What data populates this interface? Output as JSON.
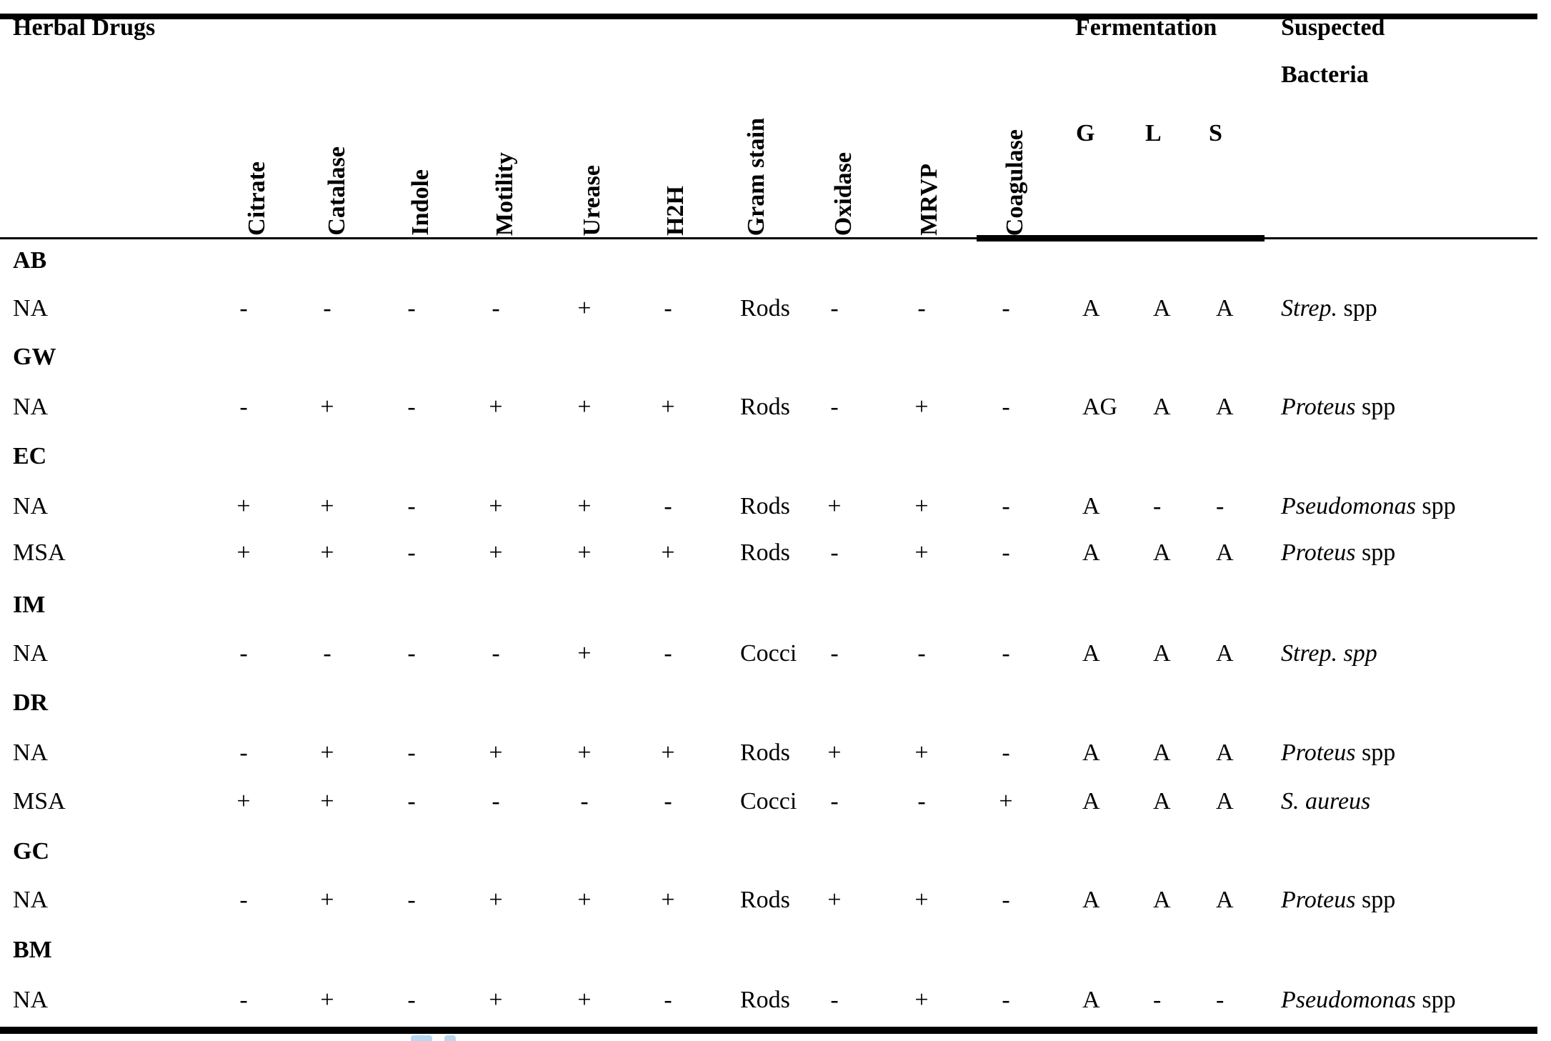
{
  "header": {
    "herbal_drugs": "Herbal Drugs",
    "fermentation": "Fermentation",
    "suspected_line1": "Suspected",
    "suspected_line2": "Bacteria",
    "rotated_columns": [
      "Citrate",
      "Catalase",
      "Indole",
      "Motility",
      "Urease",
      "H2H",
      "Gram stain",
      "Oxidase",
      "MRVP",
      "Coagulase"
    ],
    "fermentation_subcols": [
      "G",
      "L",
      "S"
    ]
  },
  "rows": [
    {
      "kind": "group",
      "label": "AB"
    },
    {
      "kind": "data",
      "label": "NA",
      "cells": [
        "-",
        "-",
        "-",
        "-",
        "+",
        "-",
        "Rods",
        "-",
        "-",
        "-",
        "A",
        "A",
        "A"
      ],
      "bacteria": [
        {
          "t": "Strep.",
          "i": true
        },
        {
          "t": " spp",
          "i": false
        }
      ]
    },
    {
      "kind": "group",
      "label": "GW"
    },
    {
      "kind": "data",
      "label": "NA",
      "cells": [
        "-",
        "+",
        "-",
        "+",
        "+",
        "+",
        "Rods",
        "-",
        "+",
        "-",
        "AG",
        "A",
        "A"
      ],
      "bacteria": [
        {
          "t": "Proteus",
          "i": true
        },
        {
          "t": " spp",
          "i": false
        }
      ]
    },
    {
      "kind": "group",
      "label": "EC"
    },
    {
      "kind": "data",
      "label": "NA",
      "cells": [
        "+",
        "+",
        "-",
        "+",
        "+",
        "-",
        "Rods",
        "+",
        "+",
        "-",
        "A",
        "-",
        "-"
      ],
      "bacteria": [
        {
          "t": "Pseudomonas",
          "i": true
        },
        {
          "t": " spp",
          "i": false
        }
      ]
    },
    {
      "kind": "data",
      "label": "MSA",
      "cells": [
        "+",
        "+",
        "-",
        "+",
        "+",
        "+",
        "Rods",
        "-",
        "+",
        "-",
        "A",
        "A",
        "A"
      ],
      "bacteria": [
        {
          "t": "Proteus",
          "i": true
        },
        {
          "t": " spp",
          "i": false
        }
      ]
    },
    {
      "kind": "group",
      "label": "IM"
    },
    {
      "kind": "data",
      "label": "NA",
      "cells": [
        "-",
        "-",
        "-",
        "-",
        "+",
        "-",
        "Cocci",
        "-",
        "-",
        "-",
        "A",
        "A",
        "A"
      ],
      "bacteria": [
        {
          "t": "Strep. spp",
          "i": true
        }
      ]
    },
    {
      "kind": "group",
      "label": "DR"
    },
    {
      "kind": "data",
      "label": "NA",
      "cells": [
        "-",
        "+",
        "-",
        "+",
        "+",
        "+",
        "Rods",
        "+",
        "+",
        "-",
        "A",
        "A",
        "A"
      ],
      "bacteria": [
        {
          "t": "Proteus",
          "i": true
        },
        {
          "t": " spp",
          "i": false
        }
      ]
    },
    {
      "kind": "data",
      "label": "MSA",
      "cells": [
        "+",
        "+",
        "-",
        "-",
        "-",
        "-",
        "Cocci",
        "-",
        "-",
        "+",
        "A",
        "A",
        "A"
      ],
      "bacteria": [
        {
          "t": "S. aureus",
          "i": true
        }
      ]
    },
    {
      "kind": "group",
      "label": "GC"
    },
    {
      "kind": "data",
      "label": "NA",
      "cells": [
        "-",
        "+",
        "-",
        "+",
        "+",
        "+",
        "Rods",
        "+",
        "+",
        "-",
        "A",
        "A",
        "A"
      ],
      "bacteria": [
        {
          "t": "Proteus",
          "i": true
        },
        {
          "t": " spp",
          "i": false
        }
      ]
    },
    {
      "kind": "group",
      "label": "BM"
    },
    {
      "kind": "data",
      "label": "NA",
      "cells": [
        "-",
        "+",
        "-",
        "+",
        "+",
        "-",
        "Rods",
        "-",
        "+",
        "-",
        "A",
        "-",
        "-"
      ],
      "bacteria": [
        {
          "t": "Pseudomonas",
          "i": true
        },
        {
          "t": " spp",
          "i": false
        }
      ]
    }
  ],
  "colors": {
    "text": "#000000",
    "border": "#000000",
    "artifact_blue": "#b9d7ee"
  }
}
